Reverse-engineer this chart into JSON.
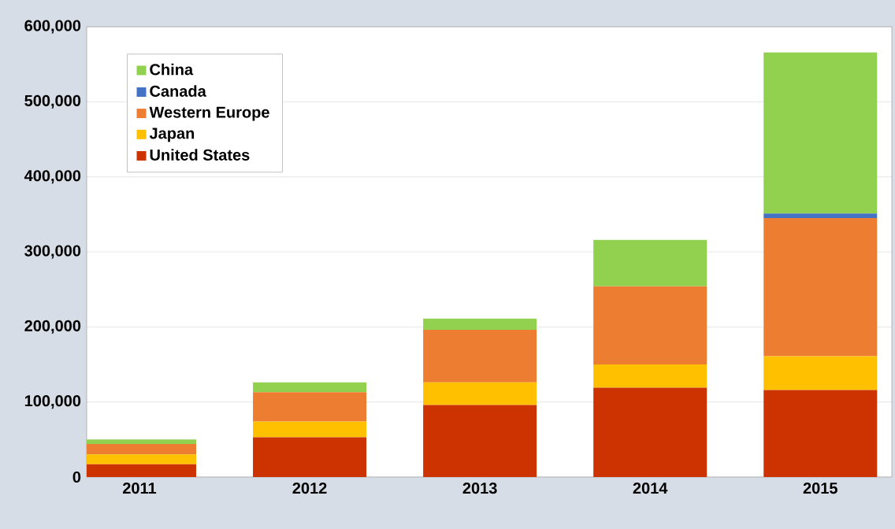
{
  "chart_data": {
    "type": "bar",
    "stacked": true,
    "categories": [
      "2011",
      "2012",
      "2013",
      "2014",
      "2015"
    ],
    "series": [
      {
        "name": "United States",
        "color": "#cc3300",
        "values": [
          17000,
          53000,
          96000,
          119000,
          116000
        ]
      },
      {
        "name": "Japan",
        "color": "#ffc000",
        "values": [
          13000,
          21000,
          30000,
          31000,
          45000
        ]
      },
      {
        "name": "Western Europe",
        "color": "#ed7d31",
        "values": [
          14000,
          39000,
          70000,
          104000,
          184000
        ]
      },
      {
        "name": "Canada",
        "color": "#4472c4",
        "values": [
          0,
          0,
          0,
          0,
          6000
        ]
      },
      {
        "name": "China",
        "color": "#92d050",
        "values": [
          6000,
          13000,
          15000,
          62000,
          215000
        ]
      }
    ],
    "ylim": [
      0,
      600000
    ],
    "yticks": [
      0,
      {
        "value": 100000,
        "label": "100,000"
      },
      {
        "value": 200000,
        "label": "200,000"
      },
      {
        "value": 300000,
        "label": "300,000"
      },
      {
        "value": 400000,
        "label": "400,000"
      },
      {
        "value": 500000,
        "label": "500,000"
      },
      {
        "value": 600000,
        "label": "600,000"
      }
    ],
    "grid": "y",
    "legend": "top left"
  }
}
